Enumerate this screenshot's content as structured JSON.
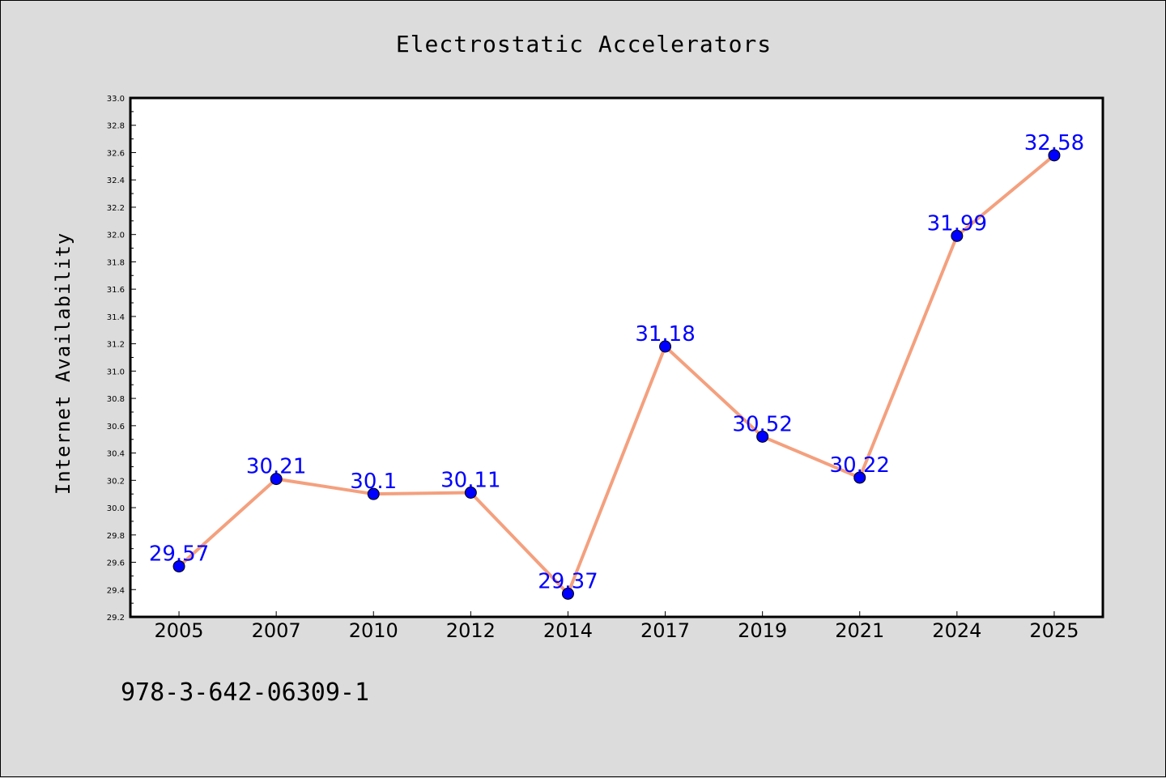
{
  "chart_data": {
    "type": "line",
    "title": "Electrostatic Accelerators",
    "xlabel": "",
    "ylabel": "Internet Availability",
    "categories": [
      "2005",
      "2007",
      "2010",
      "2012",
      "2014",
      "2017",
      "2019",
      "2021",
      "2024",
      "2025"
    ],
    "series": [
      {
        "values": [
          29.57,
          30.21,
          30.1,
          30.11,
          29.37,
          31.18,
          30.52,
          30.22,
          31.99,
          32.58
        ],
        "labels": [
          "29.57",
          "30.21",
          "30.1",
          "30.11",
          "29.37",
          "31.18",
          "30.52",
          "30.22",
          "31.99",
          "32.58"
        ],
        "line_color": "#f4a07e",
        "marker_color": "#0000ff"
      }
    ],
    "ylim": [
      29.2,
      33.0
    ],
    "yticks": [
      "29.2",
      "29.4",
      "29.6",
      "29.8",
      "30.0",
      "30.2",
      "30.4",
      "30.6",
      "30.8",
      "31.0",
      "31.2",
      "31.4",
      "31.6",
      "31.8",
      "32.0",
      "32.2",
      "32.4",
      "32.6",
      "32.8",
      "33.0"
    ],
    "grid": false,
    "legend": "none"
  },
  "footer": {
    "text": "978-3-642-06309-1"
  },
  "colors": {
    "background": "#dcdcdc",
    "plot_background": "#ffffff",
    "line": "#f4a07e",
    "marker": "#0000ff",
    "label": "#0000ff"
  }
}
